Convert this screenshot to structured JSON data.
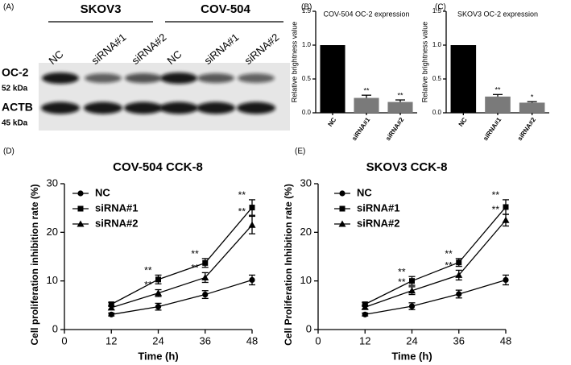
{
  "blot": {
    "panel": "(A)",
    "groups": [
      "SKOV3",
      "COV-504"
    ],
    "lanes": [
      "NC",
      "siRNA#1",
      "siRNA#2",
      "NC",
      "siRNA#1",
      "siRNA#2"
    ],
    "rows": [
      {
        "name": "OC-2",
        "size": "52 kDa"
      },
      {
        "name": "ACTB",
        "size": "45 kDa"
      }
    ]
  },
  "chart_data": [
    {
      "type": "bar",
      "panel": "(B)",
      "title": "COV-504 OC-2 expression",
      "ylabel": "Relative brightness value",
      "categories": [
        "NC",
        "siRNA#1",
        "siRNA#2"
      ],
      "values": [
        1.0,
        0.22,
        0.16
      ],
      "errors": [
        0.0,
        0.04,
        0.03
      ],
      "colors": [
        "#000000",
        "#7a7a7a",
        "#7a7a7a"
      ],
      "significance": [
        null,
        "**",
        "**"
      ],
      "ylim": [
        0,
        1.5
      ],
      "yticks": [
        {
          "value": 0,
          "label": "0.0"
        },
        0.5,
        {
          "value": 1,
          "label": "1.0"
        },
        1.5
      ]
    },
    {
      "type": "bar",
      "panel": "(C)",
      "title": "SKOV3 OC-2 expression",
      "ylabel": "Relative brightness value",
      "categories": [
        "NC",
        "siRNA#1",
        "siRNA#2"
      ],
      "values": [
        1.0,
        0.24,
        0.15
      ],
      "errors": [
        0.0,
        0.03,
        0.015
      ],
      "colors": [
        "#000000",
        "#7a7a7a",
        "#7a7a7a"
      ],
      "significance": [
        null,
        "**",
        "*"
      ],
      "ylim": [
        0,
        1.5
      ],
      "yticks": [
        {
          "value": 0,
          "label": "0.0"
        },
        0.5,
        {
          "value": 1,
          "label": "1.0"
        },
        1.5
      ]
    },
    {
      "type": "line",
      "panel": "(D)",
      "title": "COV-504 CCK-8",
      "xlabel": "Time (h)",
      "ylabel": "Cell proliferation inhibition rate (%)",
      "x": [
        12,
        24,
        36,
        48
      ],
      "series": [
        {
          "name": "NC",
          "marker": "circle",
          "color": "#000000",
          "values": [
            3.1,
            4.7,
            7.2,
            10.2
          ],
          "errors": [
            0.3,
            0.7,
            0.8,
            1.0
          ],
          "significance": [
            null,
            null,
            null,
            null
          ]
        },
        {
          "name": "siRNA#1",
          "marker": "square",
          "color": "#000000",
          "values": [
            5.2,
            10.3,
            13.7,
            25.1
          ],
          "errors": [
            0.4,
            0.9,
            0.9,
            1.6
          ],
          "significance": [
            null,
            "**",
            "**",
            "**"
          ]
        },
        {
          "name": "siRNA#2",
          "marker": "triangle",
          "color": "#000000",
          "values": [
            4.5,
            7.5,
            10.7,
            21.5
          ],
          "errors": [
            0.4,
            0.7,
            1.0,
            1.8
          ],
          "significance": [
            null,
            "**",
            "**",
            "**"
          ]
        }
      ],
      "xlim": [
        0,
        48
      ],
      "xticks": [
        0,
        12,
        24,
        36,
        48
      ],
      "ylim": [
        0,
        30
      ],
      "yticks": [
        0,
        10,
        20,
        30
      ]
    },
    {
      "type": "line",
      "panel": "(E)",
      "title": "SKOV3  CCK-8",
      "xlabel": "Time (h)",
      "ylabel": "Cell Proliferation Inhibition rate (%)",
      "x": [
        12,
        24,
        36,
        48
      ],
      "series": [
        {
          "name": "NC",
          "marker": "circle",
          "color": "#000000",
          "values": [
            3.1,
            4.8,
            7.3,
            10.2
          ],
          "errors": [
            0.3,
            0.7,
            0.8,
            1.0
          ],
          "significance": [
            null,
            null,
            null,
            null
          ]
        },
        {
          "name": "siRNA#1",
          "marker": "square",
          "color": "#000000",
          "values": [
            5.2,
            10.0,
            13.8,
            25.2
          ],
          "errors": [
            0.4,
            0.9,
            0.8,
            1.5
          ],
          "significance": [
            null,
            "**",
            "**",
            "**"
          ]
        },
        {
          "name": "siRNA#2",
          "marker": "triangle",
          "color": "#000000",
          "values": [
            4.6,
            8.0,
            11.2,
            22.5
          ],
          "errors": [
            0.4,
            0.8,
            1.0,
            1.2
          ],
          "significance": [
            null,
            "**",
            "**",
            "**"
          ]
        }
      ],
      "xlim": [
        0,
        48
      ],
      "xticks": [
        0,
        12,
        24,
        36,
        48
      ],
      "ylim": [
        0,
        30
      ],
      "yticks": [
        0,
        10,
        20,
        30
      ]
    }
  ]
}
